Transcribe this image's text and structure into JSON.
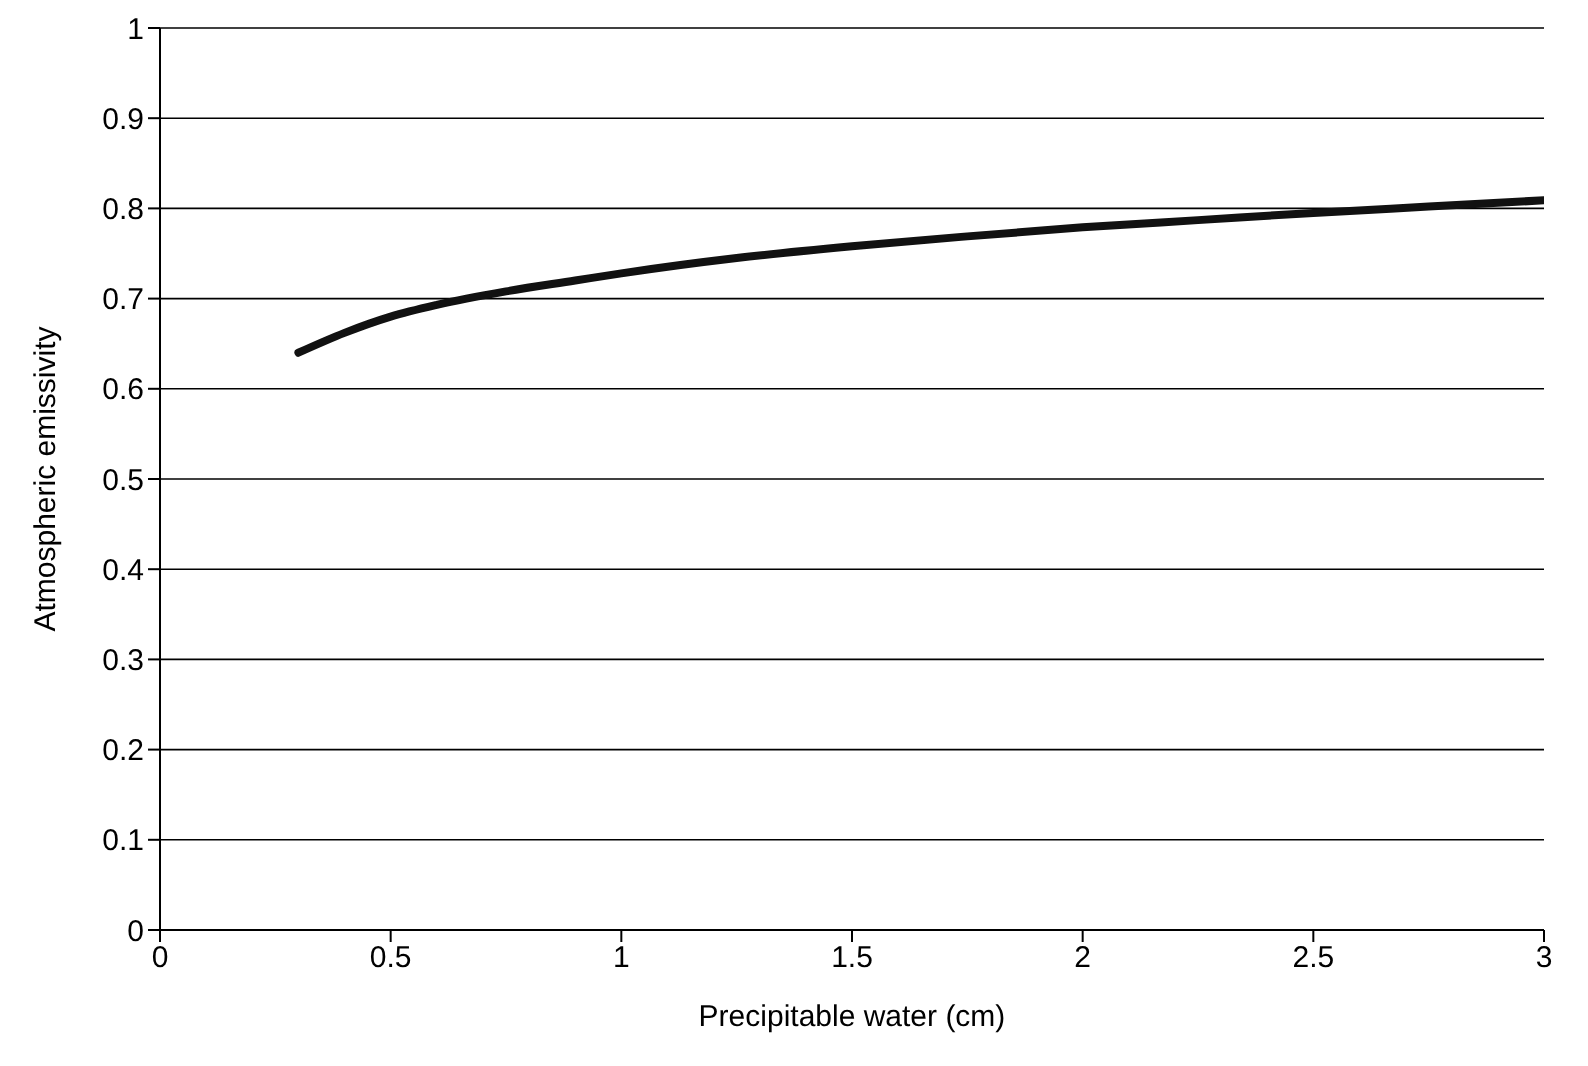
{
  "chart_data": {
    "type": "line",
    "xlabel": "Precipitable water (cm)",
    "ylabel": "Atmospheric emissivity",
    "x": [
      0.3,
      0.4,
      0.5,
      0.6,
      0.75,
      0.9,
      1,
      1.25,
      1.5,
      1.75,
      2,
      2.25,
      2.5,
      2.75,
      3
    ],
    "series": [
      {
        "color": "#111111",
        "values": [
          0.64,
          0.662,
          0.68,
          0.693,
          0.708,
          0.72,
          0.728,
          0.745,
          0.758,
          0.769,
          0.779,
          0.787,
          0.795,
          0.802,
          0.809
        ]
      }
    ],
    "xlim": [
      0,
      3
    ],
    "xticks": [
      0,
      0.5,
      1,
      1.5,
      2,
      2.5,
      3
    ],
    "ylim": [
      0,
      1
    ],
    "yticks": [
      0,
      0.1,
      0.2,
      0.3,
      0.4,
      0.5,
      0.6,
      0.7,
      0.8,
      0.9,
      1
    ],
    "grid": "y",
    "marker": "none",
    "line_style": "solid"
  }
}
